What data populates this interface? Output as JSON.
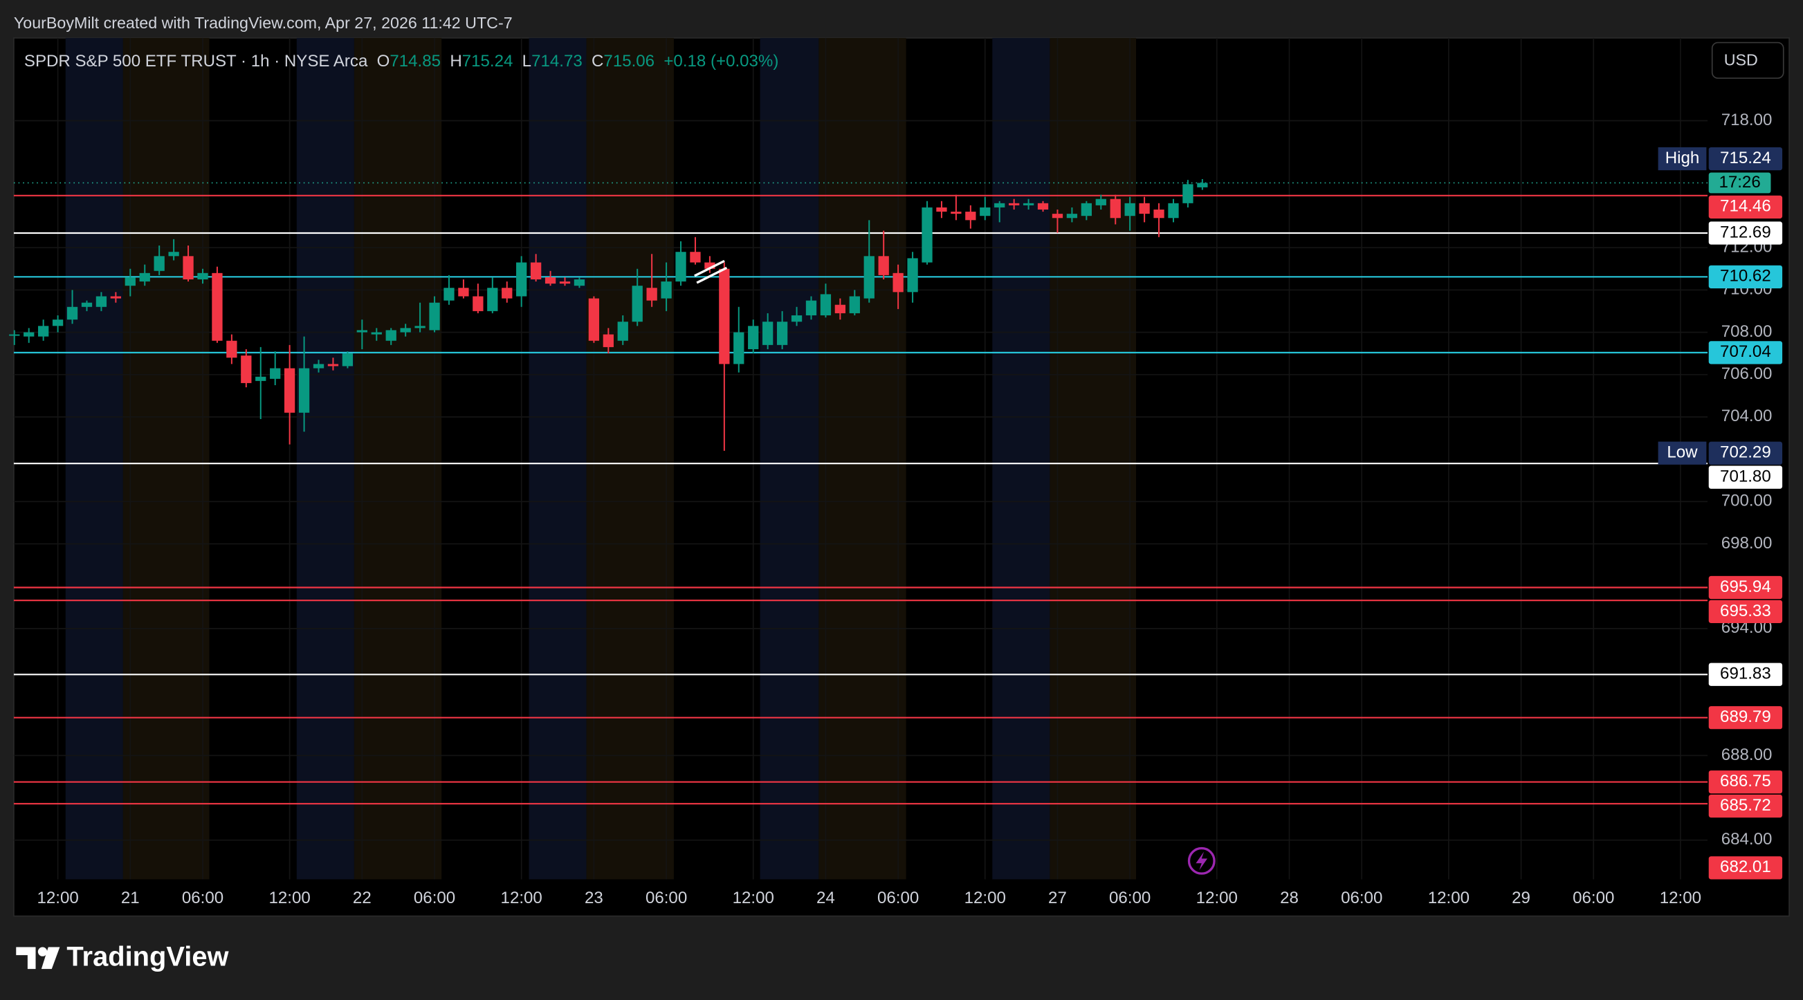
{
  "watermark": "YourBoyMilt created with TradingView.com, Apr 27, 2026 11:42 UTC-7",
  "currency_button": "USD",
  "brand": "TradingView",
  "chart_data": {
    "type": "candlestick",
    "title": "SPDR S&P 500 ETF TRUST · 1h · NYSE Arca",
    "legend": [
      {
        "label": "O",
        "value": 714.85
      },
      {
        "label": "H",
        "value": 715.24
      },
      {
        "label": "L",
        "value": 714.73
      },
      {
        "label": "C",
        "value": 715.06
      }
    ],
    "change": "+0.18 (+0.03%)",
    "up_color": "#089981",
    "down_color": "#f23645",
    "open": [
      707.9,
      707.8,
      707.8,
      708.3,
      708.6,
      709.2,
      709.2,
      709.7,
      710.2,
      710.4,
      710.9,
      711.6,
      711.6,
      710.5,
      710.8,
      707.6,
      706.9,
      705.7,
      705.8,
      706.3,
      704.2,
      706.3,
      706.5,
      706.4,
      708.0,
      707.9,
      707.6,
      708.0,
      708.2,
      708.1,
      709.5,
      710.1,
      709.7,
      709.0,
      710.1,
      709.7,
      711.3,
      710.6,
      710.4,
      710.2,
      709.6,
      707.9,
      707.6,
      708.5,
      710.1,
      709.6,
      710.4,
      711.8,
      711.3,
      711.0,
      706.5,
      707.2,
      707.4,
      707.4,
      708.5,
      708.8,
      708.8,
      709.3,
      708.9,
      709.6,
      711.6,
      710.8,
      709.9,
      711.3,
      713.9,
      713.7,
      713.7,
      713.5,
      713.9,
      714.1,
      714.0,
      714.1,
      713.6,
      713.4,
      713.5,
      714.0,
      714.3,
      713.5,
      714.1,
      713.8,
      713.4,
      714.1,
      714.85
    ],
    "high": [
      708.1,
      708.2,
      708.6,
      708.8,
      710.0,
      709.5,
      709.9,
      709.9,
      711.0,
      711.2,
      712.1,
      712.4,
      712.1,
      711.0,
      711.1,
      707.9,
      707.2,
      707.3,
      707.1,
      707.4,
      707.8,
      706.7,
      706.8,
      707.1,
      708.6,
      708.2,
      708.2,
      708.4,
      709.4,
      709.7,
      710.7,
      710.5,
      710.3,
      710.6,
      710.4,
      711.6,
      711.7,
      710.9,
      710.6,
      710.6,
      709.7,
      708.2,
      708.8,
      711.0,
      711.7,
      711.3,
      712.3,
      712.5,
      711.6,
      711.3,
      709.2,
      708.6,
      708.9,
      709.0,
      709.2,
      709.7,
      710.3,
      709.6,
      710.0,
      713.3,
      712.8,
      711.2,
      711.8,
      714.2,
      714.2,
      714.5,
      714.0,
      714.4,
      714.2,
      714.3,
      714.3,
      714.2,
      713.8,
      713.9,
      714.2,
      714.5,
      714.5,
      714.4,
      714.4,
      714.1,
      714.3,
      715.2,
      715.24
    ],
    "low": [
      707.4,
      707.5,
      707.6,
      708.0,
      708.4,
      709.0,
      709.0,
      709.4,
      709.7,
      710.2,
      710.7,
      711.4,
      710.4,
      710.3,
      707.5,
      706.5,
      705.4,
      703.9,
      705.5,
      702.7,
      703.3,
      706.1,
      706.2,
      706.3,
      707.2,
      707.6,
      707.4,
      707.8,
      708.0,
      708.0,
      709.3,
      709.6,
      708.9,
      708.9,
      709.4,
      709.2,
      710.4,
      710.2,
      710.2,
      710.1,
      707.5,
      707.0,
      707.4,
      708.3,
      709.2,
      709.0,
      710.2,
      711.2,
      710.8,
      702.4,
      706.1,
      707.0,
      707.2,
      707.2,
      708.3,
      708.6,
      708.7,
      708.6,
      708.8,
      709.4,
      710.5,
      709.1,
      709.4,
      711.2,
      713.4,
      713.3,
      712.9,
      713.3,
      713.2,
      713.8,
      713.8,
      713.7,
      712.7,
      713.2,
      713.3,
      713.8,
      713.1,
      712.8,
      713.2,
      712.5,
      713.2,
      713.9,
      714.73
    ],
    "close": [
      707.9,
      708.0,
      708.3,
      708.6,
      709.2,
      709.4,
      709.7,
      709.6,
      710.6,
      710.8,
      711.6,
      711.8,
      710.5,
      710.8,
      707.6,
      706.8,
      705.6,
      705.9,
      706.3,
      704.2,
      706.3,
      706.5,
      706.4,
      707.0,
      708.1,
      708.0,
      708.1,
      708.2,
      708.3,
      709.4,
      710.1,
      709.7,
      709.0,
      710.1,
      709.6,
      711.3,
      710.5,
      710.3,
      710.3,
      710.5,
      707.6,
      707.3,
      708.5,
      710.2,
      709.5,
      710.4,
      711.8,
      711.3,
      711.0,
      706.5,
      708.0,
      708.3,
      708.5,
      708.5,
      708.8,
      709.5,
      709.8,
      708.9,
      709.7,
      711.6,
      710.7,
      709.9,
      711.5,
      713.9,
      713.7,
      713.6,
      713.3,
      713.9,
      714.1,
      714.0,
      714.1,
      713.8,
      713.4,
      713.6,
      714.1,
      714.3,
      713.4,
      714.1,
      713.6,
      713.4,
      714.1,
      715.0,
      715.06
    ],
    "xlim": [
      -0.04,
      116.87
    ],
    "xticks": [
      {
        "value": 3,
        "label": "12:00"
      },
      {
        "value": 8,
        "label": "21"
      },
      {
        "value": 13,
        "label": "06:00"
      },
      {
        "value": 19,
        "label": "12:00"
      },
      {
        "value": 24,
        "label": "22"
      },
      {
        "value": 29,
        "label": "06:00"
      },
      {
        "value": 35,
        "label": "12:00"
      },
      {
        "value": 40,
        "label": "23"
      },
      {
        "value": 45,
        "label": "06:00"
      },
      {
        "value": 51,
        "label": "12:00"
      },
      {
        "value": 56,
        "label": "24"
      },
      {
        "value": 61,
        "label": "06:00"
      },
      {
        "value": 67,
        "label": "12:00"
      },
      {
        "value": 72,
        "label": "27"
      },
      {
        "value": 77,
        "label": "06:00"
      },
      {
        "value": 83,
        "label": "12:00"
      },
      {
        "value": 88,
        "label": "28"
      },
      {
        "value": 93,
        "label": "06:00"
      },
      {
        "value": 99,
        "label": "12:00"
      },
      {
        "value": 104,
        "label": "29"
      },
      {
        "value": 109,
        "label": "06:00"
      },
      {
        "value": 115,
        "label": "12:00"
      }
    ],
    "ylim": [
      682.15,
      721.91
    ],
    "yticks": [
      {
        "value": 684,
        "label": "684.00"
      },
      {
        "value": 688,
        "label": "688.00"
      },
      {
        "value": 694,
        "label": "694.00"
      },
      {
        "value": 698,
        "label": "698.00"
      },
      {
        "value": 700,
        "label": "700.00"
      },
      {
        "value": 704,
        "label": "704.00"
      },
      {
        "value": 706,
        "label": "706.00"
      },
      {
        "value": 708,
        "label": "708.00"
      },
      {
        "value": 710,
        "label": "710.00"
      },
      {
        "value": 712,
        "label": "712.00"
      },
      {
        "value": 718,
        "label": "718.00"
      }
    ],
    "grid": true,
    "levels": [
      {
        "value": 714.46,
        "color": "#f23645"
      },
      {
        "value": 712.69,
        "color": "#ffffff"
      },
      {
        "value": 710.62,
        "color": "#26c6da"
      },
      {
        "value": 707.04,
        "color": "#26c6da"
      },
      {
        "value": 701.8,
        "label": "701.80",
        "color": "#ffffff"
      },
      {
        "value": 695.94,
        "color": "#f23645"
      },
      {
        "value": 695.33,
        "color": "#f23645"
      },
      {
        "value": 691.83,
        "color": "#ffffff"
      },
      {
        "value": 689.79,
        "color": "#f23645"
      },
      {
        "value": 686.75,
        "color": "#f23645"
      },
      {
        "value": 685.72,
        "color": "#f23645"
      },
      {
        "value": 682.01,
        "color": "#f23645"
      }
    ],
    "high_marker": {
      "label": "High",
      "value": 715.24
    },
    "low_marker": {
      "label": "Low",
      "value": 702.29
    },
    "last_price": {
      "value": 715.06,
      "countdown": "17:26",
      "color": "#22ab94"
    }
  }
}
